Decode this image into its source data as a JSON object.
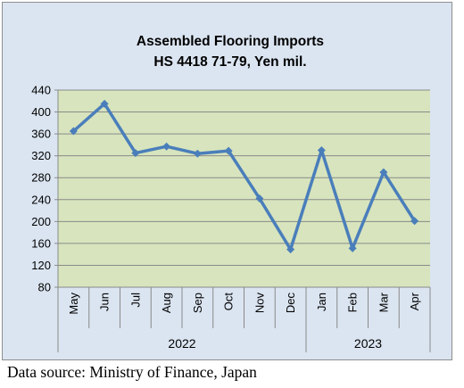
{
  "chart_data": {
    "type": "line",
    "title_lines": [
      "Assembled Flooring Imports",
      "HS 4418 71-79, Yen mil."
    ],
    "categories": [
      "May",
      "Jun",
      "Jul",
      "Aug",
      "Sep",
      "Oct",
      "Nov",
      "Dec",
      "Jan",
      "Feb",
      "Mar",
      "Apr"
    ],
    "groups": [
      {
        "label": "2022",
        "count": 8
      },
      {
        "label": "2023",
        "count": 4
      }
    ],
    "series": [
      {
        "values": [
          365,
          415,
          325,
          337,
          324,
          329,
          242,
          149,
          330,
          151,
          290,
          201
        ],
        "color": "#4a7ebb"
      }
    ],
    "ylim": [
      80,
      440
    ],
    "yticks": [
      80,
      120,
      160,
      200,
      240,
      280,
      320,
      360,
      400,
      440
    ],
    "grid": true,
    "plot_bg": "#d7e4bd",
    "chart_bg": "#dbe5f1",
    "xlabel": "",
    "ylabel": ""
  },
  "source_note": "Data source: Ministry of Finance, Japan"
}
